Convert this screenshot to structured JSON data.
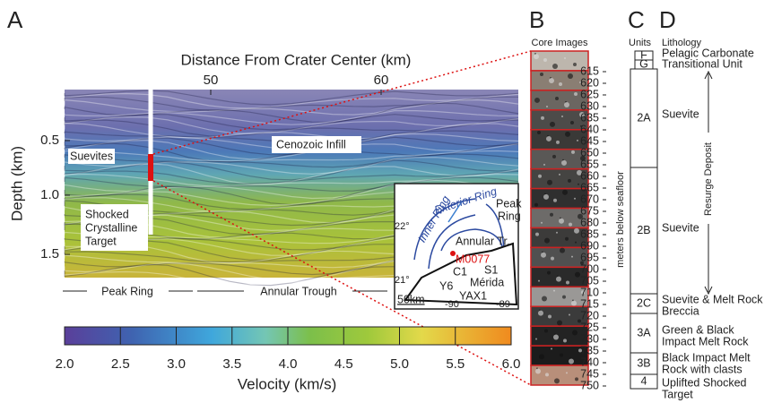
{
  "panel_a": {
    "label": "A",
    "x_axis_title": "Distance From Crater Center (km)",
    "x_ticks": [
      "50",
      "60"
    ],
    "y_axis_title": "Depth (km)",
    "y_ticks": [
      "0.5",
      "1.0",
      "1.5"
    ],
    "annotations": {
      "suevites": "Suevites",
      "infill": "Cenozoic Infill",
      "target": [
        "Shocked",
        "Crystalline",
        "Target"
      ]
    },
    "zones": [
      "Peak Ring",
      "Annular Trough"
    ],
    "colorbar": {
      "title": "Velocity (km/s)",
      "ticks": [
        "2.0",
        "2.5",
        "3.0",
        "3.5",
        "4.0",
        "4.5",
        "5.0",
        "5.5",
        "6.0"
      ]
    },
    "inset": {
      "exterior_ring": "Exterior Ring",
      "inner_ring": "Inner Ring",
      "peak_ring": [
        "Peak",
        "Ring"
      ],
      "annular": "Annular Tr.",
      "site": "M0077",
      "wells": [
        "C1",
        "S1",
        "Y6",
        "Mérida",
        "YAX1"
      ],
      "lat": [
        "22°",
        "21°"
      ],
      "lon": [
        "-90",
        "-89"
      ],
      "scale": "50km"
    }
  },
  "panel_b": {
    "label": "B",
    "title": "Core Images",
    "axis_title": "meters below seafloor",
    "depths": [
      "615",
      "620",
      "625",
      "630",
      "635",
      "640",
      "645",
      "650",
      "655",
      "660",
      "665",
      "670",
      "675",
      "680",
      "685",
      "690",
      "695",
      "700",
      "705",
      "710",
      "715",
      "720",
      "725",
      "730",
      "735",
      "740",
      "745",
      "750"
    ]
  },
  "panel_c": {
    "label": "C",
    "title": "Units",
    "units": [
      "F",
      "G",
      "2A",
      "2B",
      "2C",
      "3A",
      "3B",
      "4"
    ]
  },
  "panel_d": {
    "label": "D",
    "title": "Lithology",
    "entries": [
      [
        "Pelagic Carbonate"
      ],
      [
        "Transitional Unit"
      ],
      [
        "Suevite"
      ],
      [
        "Suevite"
      ],
      [
        "Suevite & Melt Rock",
        "Breccia"
      ],
      [
        "Green & Black",
        "Impact Melt Rock"
      ],
      [
        "Black Impact Melt",
        "Rock with clasts"
      ],
      [
        "Uplifted Shocked",
        "Target"
      ]
    ],
    "deposit": "Resurge Deposit"
  }
}
